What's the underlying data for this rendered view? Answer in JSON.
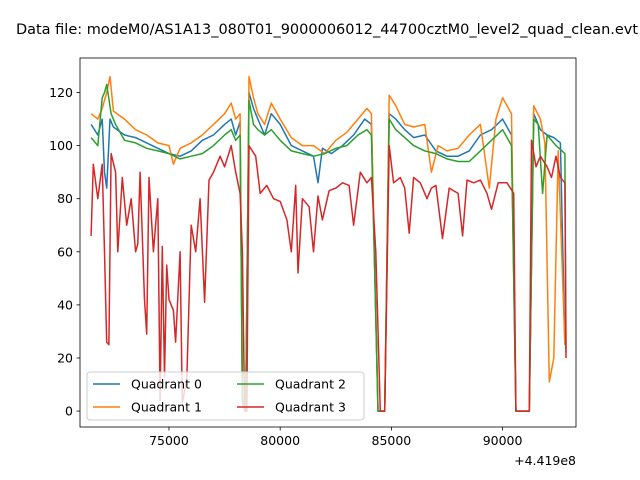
{
  "chart_data": {
    "type": "line",
    "title": "Data file: modeM0/AS1A13_080T01_9000006012_44700cztM0_level2_quad_clean.evt",
    "xlabel": "",
    "ylabel": "",
    "x_offset_label": "+4.419e8",
    "xlim": [
      71000,
      93300
    ],
    "ylim": [
      -6,
      133
    ],
    "x_ticks": [
      75000,
      80000,
      85000,
      90000
    ],
    "x_tick_labels": [
      "75000",
      "80000",
      "85000",
      "90000"
    ],
    "y_ticks": [
      0,
      20,
      40,
      60,
      80,
      100,
      120
    ],
    "y_tick_labels": [
      "0",
      "20",
      "40",
      "60",
      "80",
      "100",
      "120"
    ],
    "grid": false,
    "legend_location": "lower left",
    "series": [
      {
        "name": "Quadrant 0",
        "color": "#1f77b4",
        "points": [
          [
            71500,
            108
          ],
          [
            71800,
            104
          ],
          [
            72000,
            110
          ],
          [
            72100,
            90
          ],
          [
            72200,
            84
          ],
          [
            72350,
            110
          ],
          [
            72500,
            107
          ],
          [
            73000,
            104
          ],
          [
            73500,
            103
          ],
          [
            74000,
            101
          ],
          [
            74500,
            99
          ],
          [
            75000,
            97
          ],
          [
            75500,
            96
          ],
          [
            76000,
            98
          ],
          [
            76500,
            102
          ],
          [
            77000,
            104
          ],
          [
            77500,
            108
          ],
          [
            77800,
            110
          ],
          [
            78000,
            104
          ],
          [
            78200,
            109
          ],
          [
            78300,
            5
          ],
          [
            78450,
            0
          ],
          [
            78600,
            120
          ],
          [
            78800,
            114
          ],
          [
            79000,
            110
          ],
          [
            79300,
            104
          ],
          [
            79600,
            112
          ],
          [
            80000,
            108
          ],
          [
            80500,
            100
          ],
          [
            81000,
            98
          ],
          [
            81500,
            96
          ],
          [
            81700,
            86
          ],
          [
            81900,
            99
          ],
          [
            82300,
            97
          ],
          [
            82800,
            100
          ],
          [
            83300,
            104
          ],
          [
            83800,
            110
          ],
          [
            84100,
            108
          ],
          [
            84400,
            0
          ],
          [
            84700,
            0
          ],
          [
            84900,
            112
          ],
          [
            85200,
            110
          ],
          [
            85600,
            106
          ],
          [
            86000,
            103
          ],
          [
            86500,
            104
          ],
          [
            87000,
            98
          ],
          [
            87500,
            96
          ],
          [
            88000,
            96
          ],
          [
            88500,
            98
          ],
          [
            89000,
            104
          ],
          [
            89500,
            106
          ],
          [
            90000,
            110
          ],
          [
            90400,
            104
          ],
          [
            90600,
            0
          ],
          [
            91200,
            0
          ],
          [
            91400,
            112
          ],
          [
            91700,
            106
          ],
          [
            92000,
            104
          ],
          [
            92300,
            103
          ],
          [
            92600,
            101
          ],
          [
            92800,
            25
          ]
        ]
      },
      {
        "name": "Quadrant 1",
        "color": "#ff7f0e",
        "points": [
          [
            71500,
            112
          ],
          [
            71800,
            110
          ],
          [
            72000,
            114
          ],
          [
            72200,
            120
          ],
          [
            72350,
            126
          ],
          [
            72500,
            113
          ],
          [
            73000,
            110
          ],
          [
            73500,
            106
          ],
          [
            74000,
            104
          ],
          [
            74500,
            101
          ],
          [
            75000,
            100
          ],
          [
            75200,
            93
          ],
          [
            75500,
            99
          ],
          [
            76000,
            101
          ],
          [
            76500,
            104
          ],
          [
            77000,
            108
          ],
          [
            77500,
            112
          ],
          [
            77800,
            116
          ],
          [
            78000,
            110
          ],
          [
            78200,
            112
          ],
          [
            78300,
            4
          ],
          [
            78450,
            0
          ],
          [
            78600,
            126
          ],
          [
            78800,
            118
          ],
          [
            79000,
            112
          ],
          [
            79300,
            108
          ],
          [
            79600,
            116
          ],
          [
            80000,
            110
          ],
          [
            80500,
            103
          ],
          [
            81000,
            100
          ],
          [
            81500,
            100
          ],
          [
            82000,
            97
          ],
          [
            82500,
            102
          ],
          [
            83000,
            105
          ],
          [
            83500,
            110
          ],
          [
            83900,
            114
          ],
          [
            84100,
            112
          ],
          [
            84400,
            0
          ],
          [
            84700,
            0
          ],
          [
            84900,
            119
          ],
          [
            85200,
            115
          ],
          [
            85600,
            108
          ],
          [
            86000,
            107
          ],
          [
            86500,
            108
          ],
          [
            86800,
            90
          ],
          [
            87100,
            100
          ],
          [
            87500,
            98
          ],
          [
            88000,
            99
          ],
          [
            88500,
            104
          ],
          [
            89000,
            108
          ],
          [
            89400,
            84
          ],
          [
            89700,
            110
          ],
          [
            90000,
            118
          ],
          [
            90400,
            112
          ],
          [
            90600,
            0
          ],
          [
            91200,
            0
          ],
          [
            91400,
            115
          ],
          [
            91700,
            110
          ],
          [
            91900,
            101
          ],
          [
            92100,
            11
          ],
          [
            92300,
            20
          ],
          [
            92500,
            98
          ],
          [
            92800,
            25
          ]
        ]
      },
      {
        "name": "Quadrant 2",
        "color": "#2ca02c",
        "points": [
          [
            71500,
            103
          ],
          [
            71800,
            100
          ],
          [
            72000,
            118
          ],
          [
            72100,
            120
          ],
          [
            72200,
            123
          ],
          [
            72400,
            112
          ],
          [
            72600,
            108
          ],
          [
            73000,
            102
          ],
          [
            73500,
            101
          ],
          [
            74000,
            99
          ],
          [
            74500,
            98
          ],
          [
            75000,
            97
          ],
          [
            75500,
            95
          ],
          [
            76000,
            96
          ],
          [
            76500,
            97
          ],
          [
            77000,
            100
          ],
          [
            77500,
            104
          ],
          [
            77800,
            106
          ],
          [
            78000,
            102
          ],
          [
            78200,
            104
          ],
          [
            78300,
            3
          ],
          [
            78450,
            0
          ],
          [
            78600,
            117
          ],
          [
            78800,
            108
          ],
          [
            79000,
            106
          ],
          [
            79300,
            104
          ],
          [
            79600,
            106
          ],
          [
            80000,
            102
          ],
          [
            80500,
            98
          ],
          [
            81000,
            97
          ],
          [
            81500,
            96
          ],
          [
            82000,
            97
          ],
          [
            82500,
            99
          ],
          [
            83000,
            100
          ],
          [
            83500,
            104
          ],
          [
            83900,
            106
          ],
          [
            84100,
            104
          ],
          [
            84400,
            0
          ],
          [
            84700,
            0
          ],
          [
            84900,
            110
          ],
          [
            85200,
            106
          ],
          [
            85600,
            103
          ],
          [
            86000,
            100
          ],
          [
            86500,
            98
          ],
          [
            87000,
            97
          ],
          [
            87500,
            95
          ],
          [
            88000,
            94
          ],
          [
            88500,
            94
          ],
          [
            89000,
            98
          ],
          [
            89500,
            102
          ],
          [
            90000,
            106
          ],
          [
            90400,
            100
          ],
          [
            90600,
            0
          ],
          [
            91200,
            0
          ],
          [
            91400,
            110
          ],
          [
            91600,
            108
          ],
          [
            91800,
            82
          ],
          [
            92000,
            104
          ],
          [
            92400,
            100
          ],
          [
            92800,
            97
          ],
          [
            92850,
            22
          ]
        ]
      },
      {
        "name": "Quadrant 3",
        "color": "#d62728",
        "points": [
          [
            71500,
            66
          ],
          [
            71600,
            93
          ],
          [
            71800,
            80
          ],
          [
            72000,
            93
          ],
          [
            72100,
            60
          ],
          [
            72200,
            26
          ],
          [
            72300,
            25
          ],
          [
            72400,
            97
          ],
          [
            72600,
            90
          ],
          [
            72700,
            60
          ],
          [
            72900,
            88
          ],
          [
            73100,
            70
          ],
          [
            73300,
            80
          ],
          [
            73500,
            60
          ],
          [
            73600,
            63
          ],
          [
            73700,
            90
          ],
          [
            73900,
            42
          ],
          [
            74000,
            29
          ],
          [
            74100,
            88
          ],
          [
            74300,
            60
          ],
          [
            74500,
            80
          ],
          [
            74600,
            4
          ],
          [
            74700,
            62
          ],
          [
            74800,
            13
          ],
          [
            74900,
            55
          ],
          [
            75000,
            42
          ],
          [
            75200,
            38
          ],
          [
            75300,
            26
          ],
          [
            75500,
            60
          ],
          [
            75600,
            3
          ],
          [
            75800,
            12
          ],
          [
            76000,
            70
          ],
          [
            76200,
            60
          ],
          [
            76400,
            80
          ],
          [
            76600,
            41
          ],
          [
            76800,
            87
          ],
          [
            77000,
            90
          ],
          [
            77300,
            96
          ],
          [
            77500,
            92
          ],
          [
            77800,
            100
          ],
          [
            78000,
            90
          ],
          [
            78200,
            82
          ],
          [
            78300,
            60
          ],
          [
            78400,
            0
          ],
          [
            78500,
            0
          ],
          [
            78600,
            100
          ],
          [
            78900,
            96
          ],
          [
            79100,
            82
          ],
          [
            79400,
            85
          ],
          [
            79700,
            80
          ],
          [
            80000,
            79
          ],
          [
            80300,
            72
          ],
          [
            80500,
            60
          ],
          [
            80700,
            85
          ],
          [
            80800,
            52
          ],
          [
            81000,
            80
          ],
          [
            81300,
            77
          ],
          [
            81500,
            60
          ],
          [
            81700,
            81
          ],
          [
            81900,
            72
          ],
          [
            82200,
            83
          ],
          [
            82500,
            84
          ],
          [
            82800,
            86
          ],
          [
            83100,
            85
          ],
          [
            83300,
            70
          ],
          [
            83600,
            90
          ],
          [
            83900,
            86
          ],
          [
            84100,
            88
          ],
          [
            84300,
            60
          ],
          [
            84500,
            0
          ],
          [
            84700,
            0
          ],
          [
            84900,
            100
          ],
          [
            85100,
            86
          ],
          [
            85400,
            88
          ],
          [
            85600,
            84
          ],
          [
            85800,
            67
          ],
          [
            86000,
            88
          ],
          [
            86300,
            86
          ],
          [
            86600,
            80
          ],
          [
            86800,
            84
          ],
          [
            87000,
            85
          ],
          [
            87300,
            65
          ],
          [
            87600,
            84
          ],
          [
            88000,
            82
          ],
          [
            88200,
            66
          ],
          [
            88400,
            87
          ],
          [
            88700,
            86
          ],
          [
            89000,
            87
          ],
          [
            89300,
            82
          ],
          [
            89500,
            76
          ],
          [
            89800,
            86
          ],
          [
            90200,
            86
          ],
          [
            90500,
            82
          ],
          [
            90600,
            0
          ],
          [
            91200,
            0
          ],
          [
            91300,
            102
          ],
          [
            91500,
            92
          ],
          [
            91700,
            96
          ],
          [
            92000,
            92
          ],
          [
            92200,
            88
          ],
          [
            92400,
            96
          ],
          [
            92600,
            88
          ],
          [
            92800,
            86
          ],
          [
            92850,
            20
          ]
        ]
      }
    ]
  }
}
